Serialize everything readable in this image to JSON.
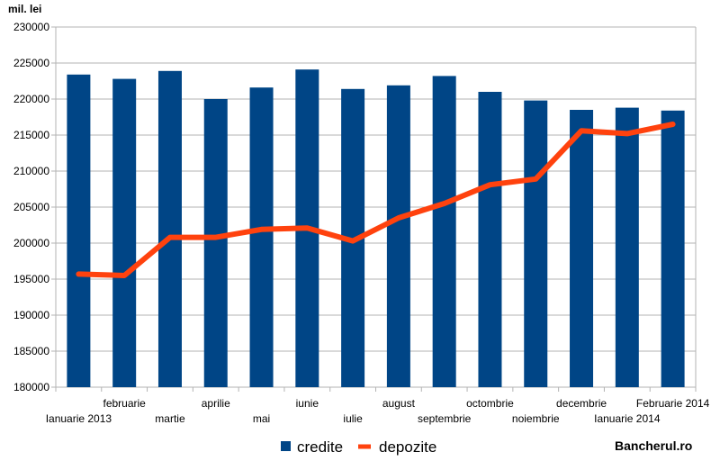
{
  "chart_data": {
    "type": "bar",
    "ylabel": "mil. lei",
    "ylim": [
      180000,
      230000
    ],
    "ytick_step": 5000,
    "categories": [
      "Ianuarie 2013",
      "februarie",
      "martie",
      "aprilie",
      "mai",
      "iunie",
      "iulie",
      "august",
      "septembrie",
      "octombrie",
      "noiembrie",
      "decembrie",
      "Ianuarie 2014",
      "Februarie 2014"
    ],
    "series": [
      {
        "name": "credite",
        "kind": "bar",
        "color": "#004586",
        "values": [
          223400,
          222800,
          223900,
          220000,
          221600,
          224100,
          221400,
          221900,
          223200,
          221000,
          219800,
          218500,
          218800,
          218400
        ]
      },
      {
        "name": "depozite",
        "kind": "line",
        "color": "#ff420e",
        "values": [
          195700,
          195500,
          200800,
          200800,
          201900,
          202100,
          200300,
          203500,
          205500,
          208100,
          208900,
          215600,
          215200,
          216500
        ]
      }
    ],
    "grid": true,
    "legend": "bottom-center"
  },
  "brand": "Bancherul.ro"
}
